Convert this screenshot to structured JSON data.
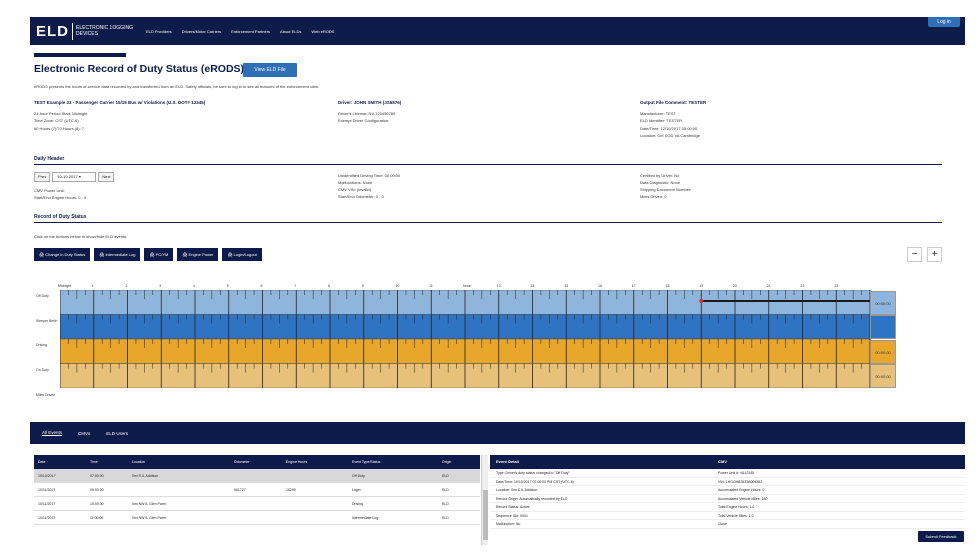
{
  "nav": {
    "logo": "ELD",
    "logo_text": "ELECTRONIC LOGGING DEVICES",
    "items": [
      "ELD Providers",
      "Drivers/Motor Carriers",
      "Enforcement Partners",
      "About ELDs",
      "Web eRODS"
    ],
    "login": "Log in"
  },
  "page": {
    "title": "Electronic Record of Duty Status (eRODS)",
    "view_pdf": "View ELD File",
    "description": "eRODS presents the hours of service data recorded by and transferred from an ELD. Safety officials, be sure to log in to see all features of the enforcement view."
  },
  "info": {
    "col1_title": "TEST Example 23 - Passenger Carrier 15/15 Bus w/ Violations (U.S. DOT# 12345)",
    "col1_lines": [
      "24-hour Period Start: Midnight",
      "Time Zone: CST (UTC-6)",
      "60 Hours (7)/70 Hours (8): 7"
    ],
    "col2_title": "Driver: JOHN SMITH (JS6576)",
    "col2_lines": [
      "Driver's License: NV-123456789",
      "Exempt Driver Configuration:"
    ],
    "col3_title": "Output File Comment: TESTER",
    "col3_lines": [
      "Manufacturer: TEST",
      "ELD Identifier: TESTER",
      "Date/Time: 12/10/2017 05:00:00",
      "Location: Ctrl SOD VA Cambridge"
    ]
  },
  "daily": {
    "title": "Daily Header",
    "prev": "Prev",
    "date": "10-10-2017",
    "next": "Next",
    "left_lines": [
      "CMV Power Unit:",
      "Start/End Engine Hours: 0 - 0"
    ],
    "mid_lines": [
      "Unidentified Driving Time: 00:00:00",
      "Malfunctions: None",
      "CMV VIN: (invalid)",
      "Start/End Odometer: 0 - 0"
    ],
    "right_lines": [
      "Certified by Driver: No",
      "Data Diagnostic: None",
      "Shipping Document Number:",
      "Miles Driven: 0"
    ]
  },
  "rods": {
    "title": "Record of Duty Status",
    "instruction": "Click on the buttons below to show/hide ELD events.",
    "buttons": [
      "Change in Duty Status",
      "Intermediate Log",
      "PC/YM",
      "Engine Power",
      "Login/Logout"
    ],
    "zoom_out": "−",
    "zoom_in": "+",
    "rows": [
      "Off Duty",
      "Sleeper Berth",
      "Driving",
      "On Duty",
      "Miles Driven"
    ],
    "hours": [
      "Midnight",
      "1",
      "2",
      "3",
      "4",
      "5",
      "6",
      "7",
      "8",
      "9",
      "10",
      "11",
      "Noon",
      "13",
      "14",
      "15",
      "16",
      "17",
      "18",
      "19",
      "20",
      "21",
      "22",
      "23"
    ],
    "totals": [
      "00:00:00",
      "",
      "00:00:00",
      "00:00:00"
    ]
  },
  "bottom_tabs": [
    "All Events",
    "CMVs",
    "ELD Users"
  ],
  "events_table": {
    "headers": [
      "Date",
      "Time",
      "Location",
      "Odometer",
      "Engine Hours",
      "Event Type/Status",
      "Origin"
    ],
    "rows": [
      [
        "10/10/2017",
        "07:00:00",
        "0mi S IL Addison",
        "",
        "",
        "Off Duty",
        "ELD"
      ],
      [
        "10/11/2017",
        "09:00:00",
        "",
        "661727",
        "16299",
        "Login",
        "ELD"
      ],
      [
        "10/11/2017",
        "10:00:00",
        "0mi NW IL Glen Parm",
        "",
        "",
        "Driving",
        "ELD"
      ],
      [
        "10/11/2017",
        "11:00:00",
        "0mi NW IL Glen Parm",
        "",
        "",
        "Intermediate Log",
        "ELD"
      ]
    ]
  },
  "event_detail": {
    "left_title": "Event Detail",
    "right_title": "CMV",
    "left_lines": [
      "Type: Driver's duty status changed to \"Off Duty\"",
      "Date/Time: 10/10/2017 07:00:00 PM CST (UTC-6)",
      "Location: 0mi S IL Addison",
      "Record Origin: Automatically recorded by ELD",
      "Record Status: Active",
      "Sequence ID#: 0001",
      "Malfunction: No"
    ],
    "right_lines": [
      "Power Unit #: VA12345",
      "VIN: 1HGCM82633A004352",
      "Accumulated Engine Hours: 0",
      "Accumulated Vehicle Miles: 180",
      "Total Engine Hours: 1.0",
      "Total Vehicle Miles: 1.0",
      "Close"
    ]
  },
  "feedback": "Submit Feedback",
  "colors": {
    "navy": "#0d1b4a",
    "off_duty": "#8fb5dc",
    "sleeper": "#2f73c3",
    "driving": "#e8a72a",
    "on_duty": "#e7c07a"
  }
}
